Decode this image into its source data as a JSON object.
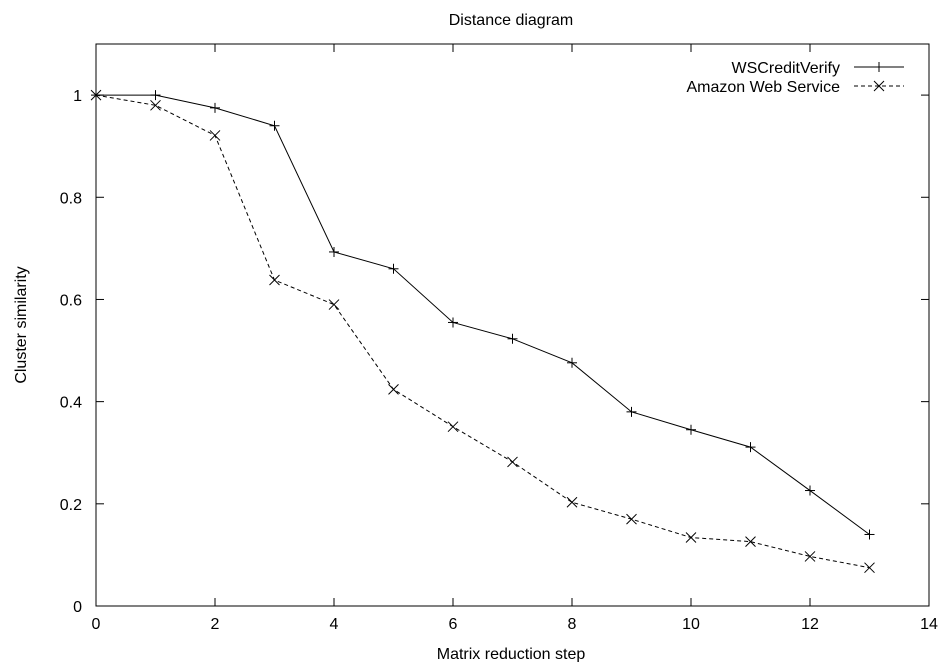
{
  "chart_data": {
    "type": "line",
    "title": "Distance diagram",
    "xlabel": "Matrix reduction step",
    "ylabel": "Cluster similarity",
    "xlim": [
      0,
      14
    ],
    "ylim": [
      0,
      1.1
    ],
    "xticks": [
      0,
      2,
      4,
      6,
      8,
      10,
      12,
      14
    ],
    "yticks": [
      0,
      0.2,
      0.4,
      0.6,
      0.8,
      1
    ],
    "xtick_labels": [
      "0",
      "2",
      "4",
      "6",
      "8",
      "10",
      "12",
      "14"
    ],
    "ytick_labels": [
      "0",
      "0.2",
      "0.4",
      "0.6",
      "0.8",
      "1"
    ],
    "grid": false,
    "legend_position": "top-right",
    "series": [
      {
        "name": "WSCreditVerify",
        "marker": "plus",
        "line_style": "solid",
        "color": "#000000",
        "x": [
          0,
          1,
          2,
          3,
          4,
          5,
          6,
          7,
          8,
          9,
          10,
          11,
          12,
          13
        ],
        "y": [
          1.0,
          1.0,
          0.975,
          0.94,
          0.693,
          0.66,
          0.555,
          0.523,
          0.476,
          0.38,
          0.345,
          0.311,
          0.226,
          0.14
        ]
      },
      {
        "name": "Amazon Web Service",
        "marker": "cross",
        "line_style": "dashed",
        "color": "#000000",
        "x": [
          0,
          1,
          2,
          3,
          4,
          5,
          6,
          7,
          8,
          9,
          10,
          11,
          12,
          13
        ],
        "y": [
          1.0,
          0.98,
          0.921,
          0.638,
          0.59,
          0.424,
          0.351,
          0.282,
          0.203,
          0.17,
          0.134,
          0.126,
          0.097,
          0.075
        ]
      }
    ]
  }
}
